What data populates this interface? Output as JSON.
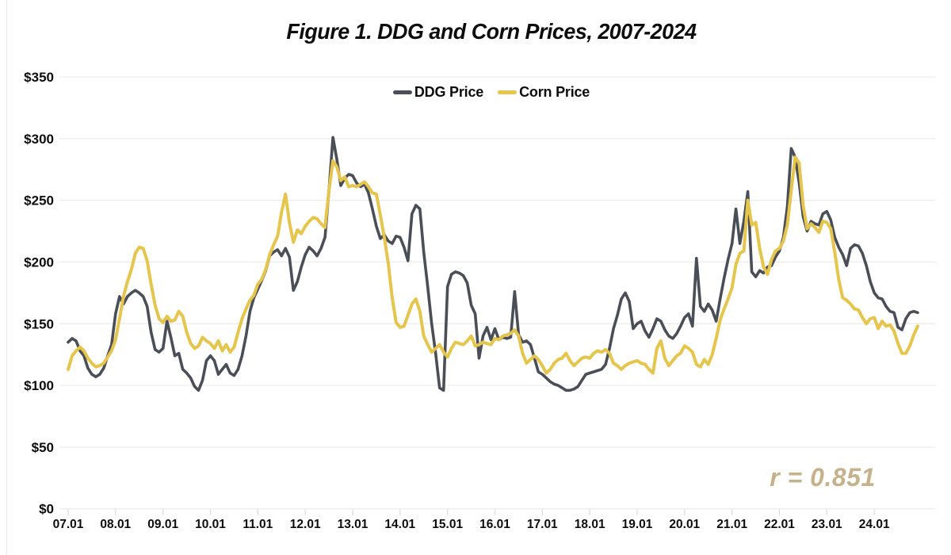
{
  "page_title": "Figure 1. DDG and Corn Prices, 2007-2024",
  "chart_data": {
    "type": "line",
    "title": "Figure 1. DDG and Corn Prices, 2007-2024",
    "xlabel": "",
    "ylabel": "",
    "x_start": "2007-01",
    "x_end": "2024-12",
    "points_per_year": 12,
    "x_tick_labels": [
      "07.01",
      "08.01",
      "09.01",
      "10.01",
      "11.01",
      "12.01",
      "13.01",
      "14.01",
      "15.01",
      "16.01",
      "17.01",
      "18.01",
      "19.01",
      "20.01",
      "21.01",
      "22.01",
      "23.01",
      "24.01"
    ],
    "y_tick_labels": [
      "$0",
      "$50",
      "$100",
      "$150",
      "$200",
      "$250",
      "$300",
      "$350"
    ],
    "y_ticks": [
      0,
      50,
      100,
      150,
      200,
      250,
      300,
      350
    ],
    "ylim": [
      0,
      350
    ],
    "grid": "horizontal",
    "grid_color": "#ededed",
    "tick_color": "#dcdcdc",
    "legend_position": "top-center",
    "annotation": {
      "text": "r = 0.851",
      "color": "#c5b28c"
    },
    "series": [
      {
        "name": "DDG Price",
        "color": "#4a4e56",
        "stroke_width": 3.6,
        "values": [
          135,
          138,
          136,
          128,
          124,
          114,
          109,
          107,
          109,
          114,
          124,
          133,
          158,
          172,
          166,
          172,
          175,
          177,
          175,
          172,
          164,
          143,
          129,
          127,
          130,
          152,
          139,
          124,
          126,
          113,
          110,
          106,
          99,
          96,
          104,
          120,
          124,
          120,
          109,
          113,
          117,
          110,
          108,
          113,
          124,
          140,
          160,
          171,
          178,
          185,
          193,
          205,
          208,
          210,
          205,
          211,
          204,
          177,
          184,
          196,
          206,
          212,
          209,
          205,
          211,
          220,
          258,
          301,
          283,
          262,
          268,
          271,
          270,
          264,
          261,
          263,
          256,
          243,
          229,
          219,
          222,
          217,
          215,
          221,
          220,
          212,
          201,
          239,
          246,
          243,
          208,
          180,
          150,
          126,
          98,
          96,
          180,
          190,
          192,
          191,
          189,
          183,
          165,
          158,
          122,
          140,
          147,
          137,
          146,
          137,
          139,
          138,
          139,
          176,
          141,
          135,
          136,
          133,
          122,
          111,
          109,
          106,
          103,
          101,
          100,
          98,
          96,
          96,
          97,
          99,
          104,
          109,
          110,
          111,
          112,
          113,
          117,
          130,
          146,
          157,
          170,
          175,
          168,
          146,
          150,
          152,
          144,
          139,
          146,
          154,
          152,
          145,
          140,
          138,
          142,
          148,
          155,
          158,
          148,
          203,
          164,
          160,
          166,
          161,
          152,
          170,
          187,
          202,
          215,
          243,
          215,
          233,
          257,
          192,
          188,
          193,
          191,
          196,
          197,
          204,
          209,
          220,
          245,
          292,
          285,
          264,
          237,
          225,
          233,
          231,
          230,
          239,
          241,
          234,
          220,
          212,
          206,
          197,
          211,
          214,
          213,
          207,
          197,
          184,
          175,
          171,
          170,
          164,
          160,
          159,
          147,
          145,
          154,
          159,
          160,
          159
        ]
      },
      {
        "name": "Corn Price",
        "color": "#e6c54d",
        "stroke_width": 4,
        "values": [
          113,
          124,
          128,
          131,
          128,
          122,
          118,
          115,
          116,
          118,
          123,
          128,
          137,
          154,
          172,
          184,
          194,
          207,
          212,
          211,
          201,
          182,
          165,
          154,
          151,
          156,
          152,
          153,
          160,
          156,
          143,
          134,
          130,
          132,
          139,
          136,
          134,
          130,
          136,
          128,
          133,
          127,
          131,
          143,
          154,
          162,
          169,
          173,
          182,
          186,
          194,
          206,
          214,
          221,
          240,
          255,
          232,
          216,
          226,
          223,
          229,
          233,
          236,
          235,
          231,
          228,
          258,
          282,
          277,
          266,
          269,
          261,
          262,
          261,
          263,
          265,
          261,
          256,
          255,
          238,
          220,
          199,
          171,
          151,
          147,
          148,
          157,
          166,
          170,
          160,
          140,
          133,
          127,
          130,
          133,
          127,
          123,
          130,
          135,
          134,
          133,
          136,
          140,
          132,
          133,
          135,
          134,
          133,
          138,
          137,
          140,
          141,
          142,
          145,
          140,
          126,
          118,
          121,
          124,
          121,
          116,
          110,
          113,
          118,
          121,
          122,
          126,
          120,
          116,
          119,
          122,
          123,
          122,
          126,
          128,
          127,
          129,
          126,
          118,
          116,
          113,
          116,
          118,
          119,
          120,
          118,
          117,
          113,
          110,
          130,
          136,
          122,
          116,
          120,
          124,
          126,
          132,
          130,
          127,
          117,
          115,
          121,
          117,
          125,
          138,
          153,
          162,
          170,
          179,
          198,
          207,
          209,
          250,
          230,
          232,
          211,
          196,
          190,
          202,
          209,
          211,
          217,
          230,
          258,
          285,
          280,
          246,
          227,
          231,
          228,
          224,
          233,
          232,
          227,
          208,
          186,
          171,
          169,
          166,
          162,
          161,
          155,
          150,
          154,
          155,
          146,
          152,
          148,
          149,
          144,
          134,
          126,
          126,
          132,
          141,
          148
        ]
      }
    ]
  }
}
